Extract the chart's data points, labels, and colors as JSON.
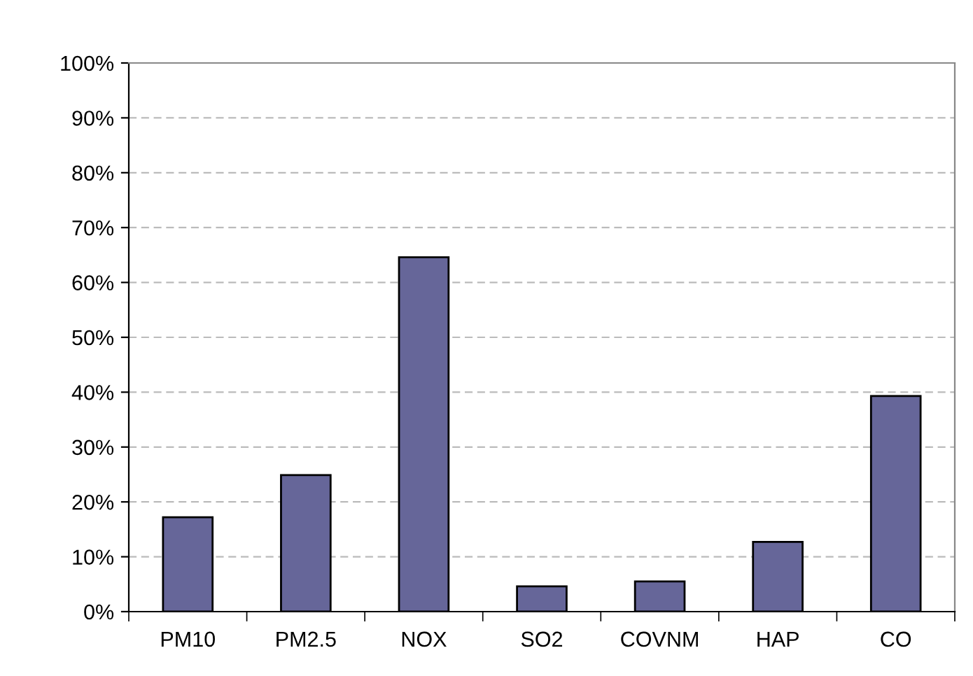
{
  "chart_data": {
    "type": "bar",
    "categories": [
      "PM10",
      "PM2.5",
      "NOX",
      "SO2",
      "COVNM",
      "HAP",
      "CO"
    ],
    "values": [
      17.2,
      24.9,
      64.6,
      4.6,
      5.5,
      12.7,
      39.3
    ],
    "color": "#666699",
    "ylim": [
      0,
      100
    ],
    "yticks": [
      {
        "value": 0,
        "label": "0%"
      },
      {
        "value": 10,
        "label": "10%"
      },
      {
        "value": 20,
        "label": "20%"
      },
      {
        "value": 30,
        "label": "30%"
      },
      {
        "value": 40,
        "label": "40%"
      },
      {
        "value": 50,
        "label": "50%"
      },
      {
        "value": 60,
        "label": "60%"
      },
      {
        "value": 70,
        "label": "70%"
      },
      {
        "value": 80,
        "label": "80%"
      },
      {
        "value": 90,
        "label": "90%"
      },
      {
        "value": 100,
        "label": "100%"
      }
    ],
    "grid": "y"
  }
}
